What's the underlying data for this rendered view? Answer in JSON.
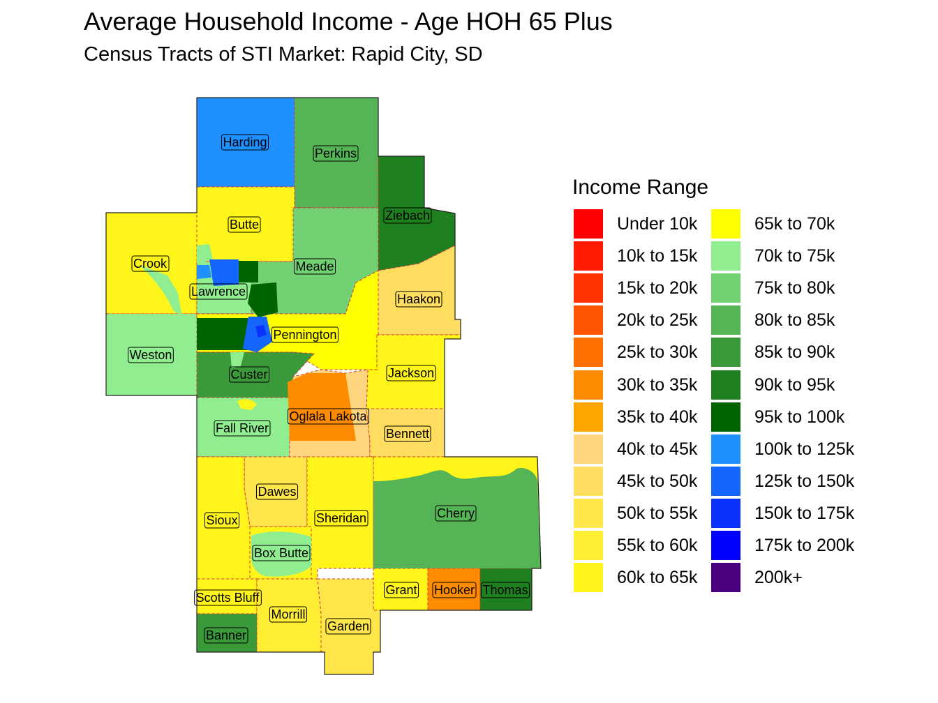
{
  "map": {
    "title": "Average Household Income - Age HOH 65 Plus",
    "subtitle": "Census Tracts of STI Market: Rapid City, SD",
    "legend_title": "Income Range",
    "legend": [
      {
        "label": "Under 10k",
        "color": "#FF0000"
      },
      {
        "label": "10k to 15k",
        "color": "#FF1A00"
      },
      {
        "label": "15k to 20k",
        "color": "#FF3300"
      },
      {
        "label": "20k to 25k",
        "color": "#FF5500"
      },
      {
        "label": "25k to 30k",
        "color": "#FF7000"
      },
      {
        "label": "30k to 35k",
        "color": "#FF8C00"
      },
      {
        "label": "35k to 40k",
        "color": "#FFA500"
      },
      {
        "label": "40k to 45k",
        "color": "#FFD580"
      },
      {
        "label": "45k to 50k",
        "color": "#FFDD5E"
      },
      {
        "label": "50k to 55k",
        "color": "#FFE64A"
      },
      {
        "label": "55k to 60k",
        "color": "#FFEE33"
      },
      {
        "label": "60k to 65k",
        "color": "#FFF51A"
      },
      {
        "label": "65k to 70k",
        "color": "#FFFF00"
      },
      {
        "label": "70k to 75k",
        "color": "#90EE90"
      },
      {
        "label": "75k to 80k",
        "color": "#72D172"
      },
      {
        "label": "80k to 85k",
        "color": "#55B455"
      },
      {
        "label": "85k to 90k",
        "color": "#3A9A3A"
      },
      {
        "label": "90k to 95k",
        "color": "#1F801F"
      },
      {
        "label": "95k to 100k",
        "color": "#006400"
      },
      {
        "label": "100k to 125k",
        "color": "#1E90FF"
      },
      {
        "label": "125k to 150k",
        "color": "#1565FF"
      },
      {
        "label": "150k to 175k",
        "color": "#0A32FF"
      },
      {
        "label": "175k to 200k",
        "color": "#0000FF"
      },
      {
        "label": "200k+",
        "color": "#4B0082"
      }
    ],
    "counties": [
      "Harding",
      "Perkins",
      "Ziebach",
      "Butte",
      "Meade",
      "Crook",
      "Lawrence",
      "Haakon",
      "Pennington",
      "Weston",
      "Custer",
      "Jackson",
      "Fall River",
      "Oglala Lakota",
      "Bennett",
      "Dawes",
      "Sioux",
      "Sheridan",
      "Cherry",
      "Box Butte",
      "Grant",
      "Hooker",
      "Thomas",
      "Scotts Bluff",
      "Morrill",
      "Garden",
      "Banner"
    ]
  }
}
